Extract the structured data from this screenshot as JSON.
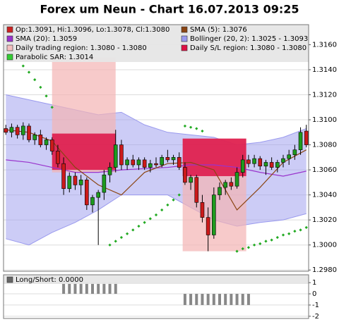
{
  "title": "Forex um Neun - Chart 16.07.2013 09:25",
  "chart_data": [
    {
      "type": "candlestick",
      "legend": [
        {
          "label": "Op:1.3091, Hi:1.3096, Lo:1.3078, Cl:1.3080",
          "color": "#cc2222"
        },
        {
          "label": "SMA (5): 1.3076",
          "color": "#8b4513"
        },
        {
          "label": "SMA (20): 1.3059",
          "color": "#9933cc"
        },
        {
          "label": "Bollinger (20, 2): 1.3025 - 1.3093",
          "color": "#9999ee"
        },
        {
          "label": "Daily trading region: 1.3080 - 1.3080",
          "color": "#f4c0c0"
        },
        {
          "label": "Daily S/L region: 1.3080 - 1.3080",
          "color": "#dd1144"
        },
        {
          "label": "Parabolic SAR: 1.3014",
          "color": "#33cc33"
        }
      ],
      "up_color": "#1e9a1e",
      "down_color": "#cc1a1a",
      "open": [
        1.3093,
        1.309,
        1.3094,
        1.3088,
        1.3095,
        1.3084,
        1.3088,
        1.308,
        1.3084,
        1.3075,
        1.3065,
        1.3045,
        1.3055,
        1.3048,
        1.3052,
        1.3032,
        1.3038,
        1.3042,
        1.3056,
        1.3062,
        1.308,
        1.3064,
        1.3068,
        1.3064,
        1.3068,
        1.3062,
        1.3065,
        1.3064,
        1.307,
        1.3068,
        1.307,
        1.3062,
        1.305,
        1.3054,
        1.3034,
        1.3022,
        1.3008,
        1.304,
        1.3046,
        1.305,
        1.3047,
        1.3058,
        1.3068,
        1.3065,
        1.3069,
        1.3063,
        1.3066,
        1.3062,
        1.3066,
        1.3069,
        1.3072,
        1.3076,
        1.3091
      ],
      "high": [
        1.3096,
        1.3097,
        1.3096,
        1.3098,
        1.3097,
        1.309,
        1.3092,
        1.3086,
        1.3086,
        1.308,
        1.307,
        1.3058,
        1.3058,
        1.3056,
        1.3054,
        1.304,
        1.3044,
        1.306,
        1.3066,
        1.3092,
        1.3084,
        1.307,
        1.3072,
        1.307,
        1.307,
        1.3068,
        1.307,
        1.3072,
        1.3076,
        1.3072,
        1.3074,
        1.3066,
        1.3056,
        1.3056,
        1.304,
        1.303,
        1.3046,
        1.305,
        1.3052,
        1.3054,
        1.3062,
        1.3072,
        1.3072,
        1.3072,
        1.3071,
        1.3068,
        1.307,
        1.3068,
        1.3072,
        1.3076,
        1.308,
        1.3094,
        1.3096
      ],
      "low": [
        1.3088,
        1.3086,
        1.3085,
        1.3084,
        1.3082,
        1.308,
        1.3078,
        1.3076,
        1.3072,
        1.3062,
        1.304,
        1.3042,
        1.3044,
        1.304,
        1.3028,
        1.3026,
        1.3,
        1.3036,
        1.305,
        1.3058,
        1.306,
        1.306,
        1.3062,
        1.306,
        1.306,
        1.3058,
        1.3062,
        1.3062,
        1.3066,
        1.3064,
        1.306,
        1.3048,
        1.3044,
        1.303,
        1.3018,
        1.2995,
        1.3005,
        1.3036,
        1.304,
        1.3044,
        1.3045,
        1.3054,
        1.3062,
        1.3062,
        1.306,
        1.3056,
        1.306,
        1.3058,
        1.3062,
        1.3064,
        1.3068,
        1.3072,
        1.3078
      ],
      "close": [
        1.309,
        1.3094,
        1.3088,
        1.3095,
        1.3084,
        1.3088,
        1.308,
        1.3084,
        1.3075,
        1.3065,
        1.3045,
        1.3055,
        1.3048,
        1.3052,
        1.3032,
        1.3038,
        1.3042,
        1.3056,
        1.3062,
        1.308,
        1.3064,
        1.3068,
        1.3064,
        1.3068,
        1.3062,
        1.3065,
        1.3064,
        1.307,
        1.3068,
        1.307,
        1.3062,
        1.305,
        1.3054,
        1.3034,
        1.3022,
        1.3008,
        1.304,
        1.3046,
        1.305,
        1.3047,
        1.3058,
        1.3068,
        1.3065,
        1.3069,
        1.3063,
        1.3066,
        1.3062,
        1.3066,
        1.3069,
        1.3072,
        1.3076,
        1.309,
        1.308
      ],
      "overlay_x": [
        0,
        4,
        8,
        12,
        16,
        20,
        24,
        28,
        32,
        36,
        40,
        44,
        48,
        52
      ],
      "sma5": {
        "color": "#8b4513",
        "values": [
          1.3092,
          1.309,
          1.3083,
          1.3062,
          1.3048,
          1.304,
          1.3058,
          1.3065,
          1.3066,
          1.306,
          1.3028,
          1.3046,
          1.3066,
          1.3076
        ]
      },
      "sma20": {
        "color": "#9933cc",
        "values": [
          1.3068,
          1.3066,
          1.3062,
          1.3058,
          1.3058,
          1.306,
          1.3061,
          1.3062,
          1.3064,
          1.3064,
          1.3062,
          1.3058,
          1.3055,
          1.3059
        ]
      },
      "bollinger": {
        "color": "#9999ee",
        "upper": [
          1.312,
          1.3116,
          1.3112,
          1.3108,
          1.3104,
          1.3106,
          1.3096,
          1.309,
          1.3088,
          1.3086,
          1.308,
          1.3082,
          1.3086,
          1.3093
        ],
        "lower": [
          1.3005,
          1.3,
          1.301,
          1.3018,
          1.3028,
          1.304,
          1.304,
          1.304,
          1.303,
          1.302,
          1.3015,
          1.3018,
          1.302,
          1.3025
        ]
      },
      "sar": {
        "color": "#22aa22",
        "values": [
          null,
          null,
          null,
          1.3143,
          1.3138,
          1.3132,
          1.3126,
          1.3119,
          1.311,
          null,
          null,
          null,
          null,
          null,
          null,
          null,
          null,
          null,
          1.3,
          1.3003,
          1.3006,
          1.3009,
          1.3012,
          1.3015,
          1.3018,
          1.3021,
          1.3024,
          1.3028,
          1.3032,
          1.3036,
          1.304,
          1.3095,
          1.3094,
          1.3093,
          1.3091,
          null,
          null,
          null,
          null,
          null,
          1.2995,
          1.2997,
          1.2998,
          1.3,
          1.3001,
          1.3003,
          1.3004,
          1.3006,
          1.3008,
          1.3009,
          1.3011,
          1.3012,
          1.3014
        ]
      },
      "trading_regions": {
        "color": "#f4b4b4",
        "spans": [
          {
            "x": [
              8,
              19
            ],
            "y": [
              1.3058,
              1.315
            ]
          },
          {
            "x": [
              30.6,
              41.6
            ],
            "y": [
              1.2995,
              1.3085
            ]
          }
        ]
      },
      "sl_regions": {
        "color": "#dd1144",
        "spans": [
          {
            "x": [
              8,
              19
            ],
            "y": [
              1.306,
              1.3089
            ]
          },
          {
            "x": [
              30.6,
              41.6
            ],
            "y": [
              1.3055,
              1.3085
            ]
          }
        ]
      },
      "xlim": [
        -0.4,
        52.4
      ],
      "ylim": [
        1.2979,
        1.3176
      ],
      "yticks": [
        {
          "value": 1.316,
          "label": "1.3160"
        },
        {
          "value": 1.314,
          "label": "1.3140"
        },
        {
          "value": 1.312,
          "label": "1.3120"
        },
        {
          "value": 1.31,
          "label": "1.3100"
        },
        {
          "value": 1.308,
          "label": "1.3080"
        },
        {
          "value": 1.306,
          "label": "1.3060"
        },
        {
          "value": 1.304,
          "label": "1.3040"
        },
        {
          "value": 1.302,
          "label": "1.3020"
        },
        {
          "value": 1.3,
          "label": "1.3000"
        },
        {
          "value": 1.298,
          "label": "1.2980"
        }
      ],
      "grid": true
    },
    {
      "type": "bar",
      "legend": [
        {
          "label": "Long/Short: 0.0000",
          "color": "#666666"
        }
      ],
      "color": "#888888",
      "values": [
        0,
        0,
        0,
        0,
        0,
        0,
        0,
        0,
        0,
        0,
        1,
        1,
        1,
        1,
        1,
        1,
        1,
        1,
        1,
        1,
        0,
        0,
        0,
        0,
        0,
        0,
        0,
        0,
        0,
        0,
        0,
        -1,
        -1,
        -1,
        -1,
        -1,
        -1,
        -1,
        -1,
        -1,
        -1,
        -1,
        -1,
        0,
        0,
        0,
        0,
        0,
        0,
        0,
        0,
        0,
        0
      ],
      "xlim": [
        -0.4,
        52.4
      ],
      "ylim": [
        -2.2,
        1.7
      ],
      "yticks": [
        1,
        0,
        -1,
        -2
      ],
      "grid": true
    }
  ]
}
